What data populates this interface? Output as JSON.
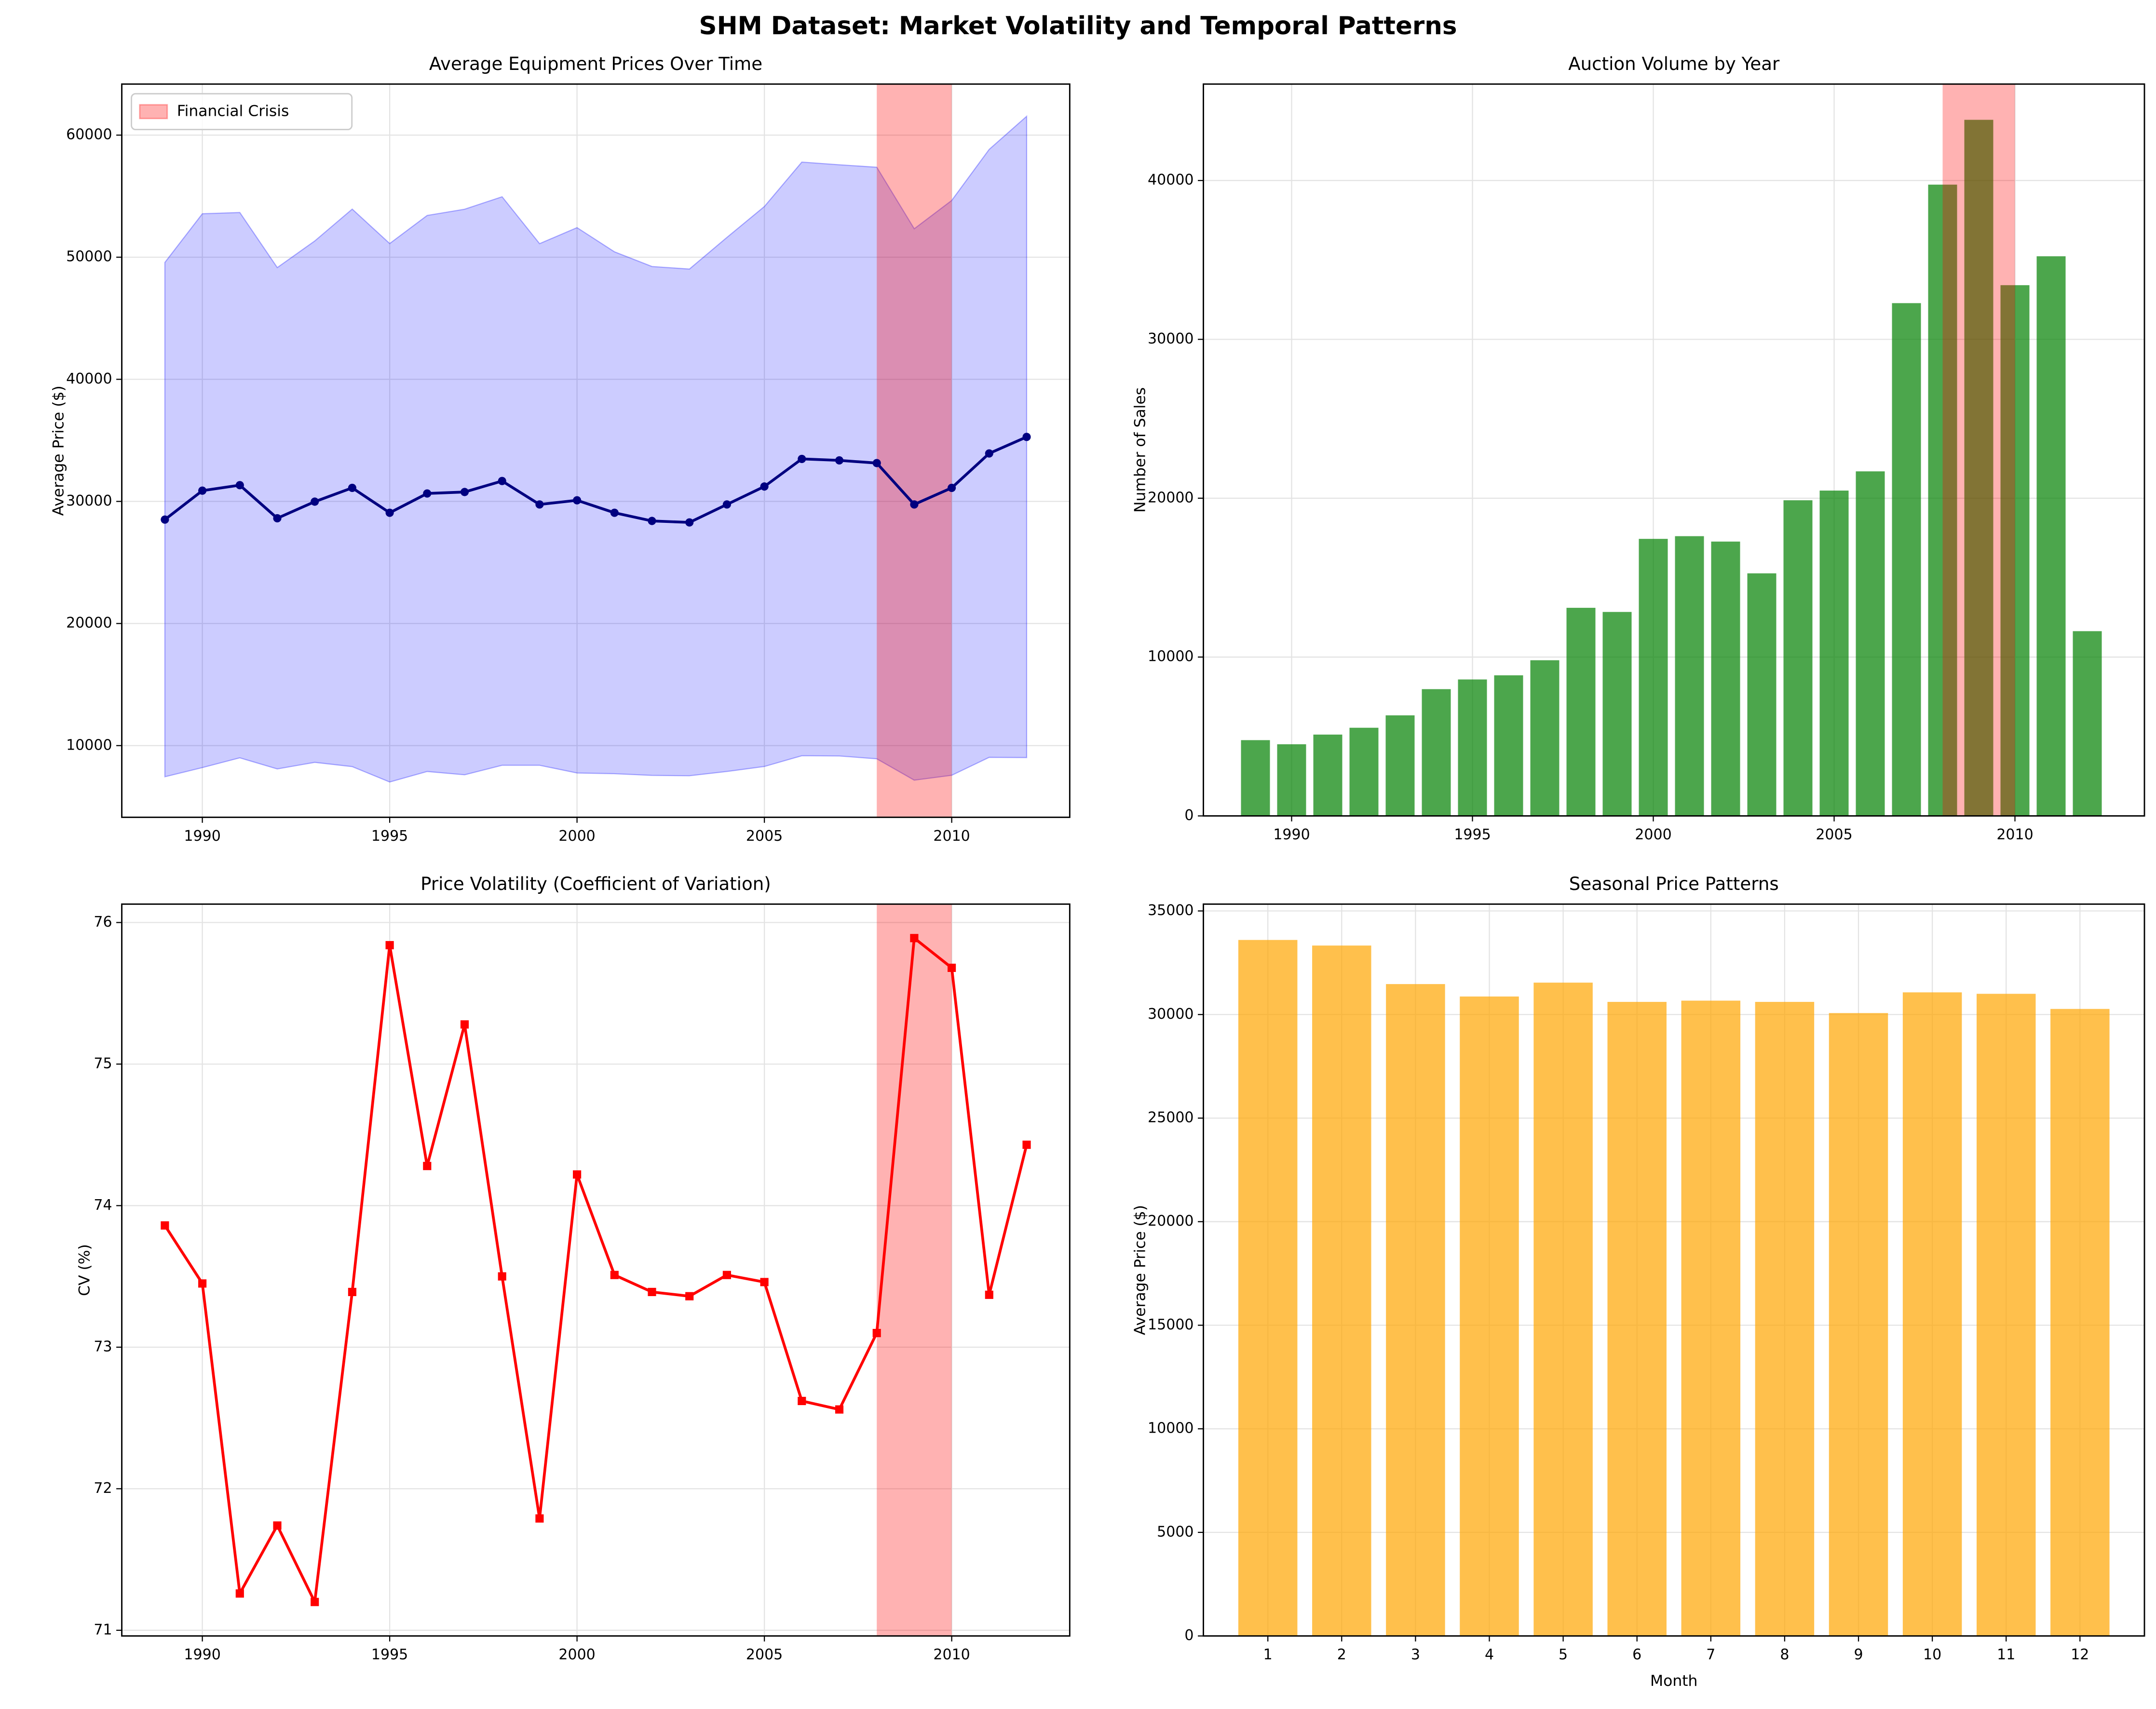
{
  "title": "SHM Dataset: Market Volatility and Temporal Patterns",
  "chart_data": [
    {
      "type": "line",
      "title": "Average Equipment Prices Over Time",
      "ylabel": "Average Price ($)",
      "x": [
        1989,
        1990,
        1991,
        1992,
        1993,
        1994,
        1995,
        1996,
        1997,
        1998,
        1999,
        2000,
        2001,
        2002,
        2003,
        2004,
        2005,
        2006,
        2007,
        2008,
        2009,
        2010,
        2011,
        2012
      ],
      "series": [
        {
          "color": "#000080",
          "marker": "o",
          "values": [
            28510,
            30880,
            31330,
            28620,
            29980,
            31110,
            29070,
            30650,
            30770,
            31670,
            29750,
            30090,
            29070,
            28400,
            28280,
            29750,
            31220,
            33480,
            33360,
            33140,
            29750,
            31110,
            33930,
            35280
          ]
        }
      ],
      "band": {
        "color": "#0000ff",
        "opacity": 0.2,
        "upper": [
          49570,
          53560,
          53660,
          49150,
          51330,
          53940,
          51120,
          53420,
          53930,
          54950,
          51110,
          52420,
          50440,
          49240,
          49030,
          51620,
          54150,
          57790,
          57570,
          57370,
          52330,
          54650,
          58830,
          61540
        ],
        "lower": [
          7450,
          8200,
          9000,
          8090,
          8630,
          8280,
          7020,
          7880,
          7610,
          8390,
          8390,
          7760,
          7700,
          7560,
          7530,
          7880,
          8290,
          9170,
          9150,
          8920,
          7170,
          7570,
          9040,
          9020
        ]
      },
      "spans": [
        {
          "name": "Financial Crisis",
          "x": [
            2008,
            2010
          ],
          "color": "#ff0000",
          "opacity": 0.3
        }
      ],
      "legend": "upper left",
      "xlim": [
        1987.85,
        2013.15
      ],
      "xticks": [
        1990,
        1995,
        2000,
        2005,
        2010
      ],
      "ylim": [
        4130,
        64180
      ],
      "yticks": [
        10000,
        20000,
        30000,
        40000,
        50000,
        60000
      ],
      "grid": true
    },
    {
      "type": "bar",
      "title": "Auction Volume by Year",
      "ylabel": "Number of Sales",
      "x": [
        1989,
        1990,
        1991,
        1992,
        1993,
        1994,
        1995,
        1996,
        1997,
        1998,
        1999,
        2000,
        2001,
        2002,
        2003,
        2004,
        2005,
        2006,
        2007,
        2008,
        2009,
        2010,
        2011,
        2012
      ],
      "series": [
        {
          "color": "#008000",
          "opacity": 0.7,
          "values": [
            4770,
            4510,
            5120,
            5550,
            6330,
            7980,
            8590,
            8850,
            9800,
            13100,
            12840,
            17440,
            17610,
            17270,
            15270,
            19870,
            20480,
            21690,
            32280,
            39740,
            43820,
            33410,
            35230,
            11630
          ]
        }
      ],
      "spans": [
        {
          "x": [
            2008,
            2010
          ],
          "color": "#ff0000",
          "opacity": 0.3
        }
      ],
      "xlim": [
        1987.56,
        2013.58
      ],
      "xticks": [
        1990,
        1995,
        2000,
        2005,
        2010
      ],
      "ylim": [
        0,
        46070
      ],
      "yticks": [
        0,
        10000,
        20000,
        30000,
        40000
      ],
      "grid": true
    },
    {
      "type": "line",
      "title": "Price Volatility (Coefficient of Variation)",
      "ylabel": "CV (%)",
      "x": [
        1989,
        1990,
        1991,
        1992,
        1993,
        1994,
        1995,
        1996,
        1997,
        1998,
        1999,
        2000,
        2001,
        2002,
        2003,
        2004,
        2005,
        2006,
        2007,
        2008,
        2009,
        2010,
        2011,
        2012
      ],
      "series": [
        {
          "color": "#ff0000",
          "marker": "s",
          "values": [
            73.86,
            73.45,
            71.26,
            71.74,
            71.2,
            73.39,
            75.84,
            74.28,
            75.28,
            73.5,
            71.79,
            74.22,
            73.51,
            73.39,
            73.36,
            73.51,
            73.46,
            72.62,
            72.56,
            73.1,
            75.89,
            75.68,
            73.37,
            74.43
          ]
        }
      ],
      "spans": [
        {
          "x": [
            2008,
            2010
          ],
          "color": "#ff0000",
          "opacity": 0.3
        }
      ],
      "xlim": [
        1987.85,
        2013.15
      ],
      "xticks": [
        1990,
        1995,
        2000,
        2005,
        2010
      ],
      "ylim": [
        70.96,
        76.13
      ],
      "yticks": [
        71,
        72,
        73,
        74,
        75,
        76
      ],
      "grid": true
    },
    {
      "type": "bar",
      "title": "Seasonal Price Patterns",
      "ylabel": "Average Price ($)",
      "xlabel": "Month",
      "categories": [
        1,
        2,
        3,
        4,
        5,
        6,
        7,
        8,
        9,
        10,
        11,
        12
      ],
      "series": [
        {
          "color": "#ffa500",
          "opacity": 0.7,
          "values": [
            33600,
            33330,
            31470,
            30870,
            31540,
            30610,
            30670,
            30610,
            30070,
            31070,
            31000,
            30270
          ]
        }
      ],
      "ylim": [
        0,
        35330
      ],
      "yticks": [
        0,
        5000,
        10000,
        15000,
        20000,
        25000,
        30000,
        35000
      ],
      "grid": true
    }
  ]
}
